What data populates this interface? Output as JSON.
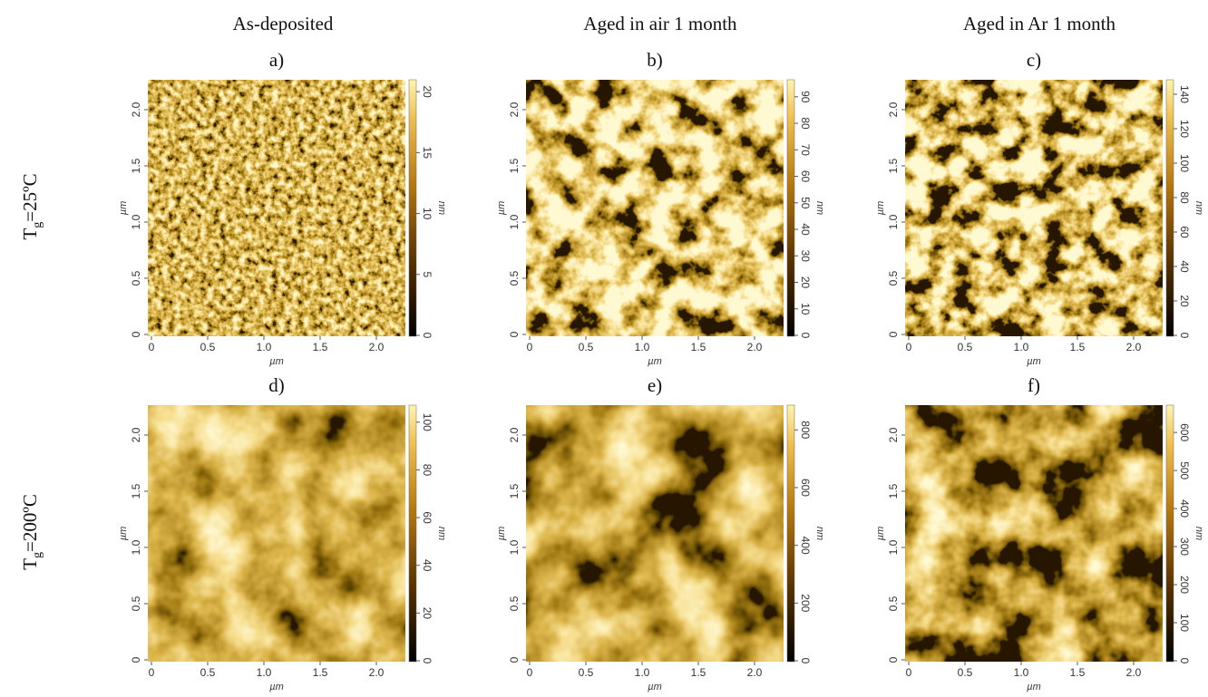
{
  "column_titles": [
    "As-deposited",
    "Aged in air 1 month",
    "Aged in Ar 1 month"
  ],
  "row_labels": [
    {
      "symbol": "T",
      "subscript": "g",
      "rest": "=25ºC"
    },
    {
      "symbol": "T",
      "subscript": "g",
      "rest": "=200ºC"
    }
  ],
  "panels": [
    {
      "label": "a)",
      "x_ticks": [
        "0",
        "0.5",
        "1.0",
        "1.5",
        "2.0"
      ],
      "y_ticks": [
        "0",
        "0.5",
        "1.0",
        "1.5",
        "2.0"
      ],
      "x_axis_label": "µm",
      "y_axis_label": "µm",
      "colorbar_ticks": [
        0,
        5,
        10,
        15,
        20
      ],
      "colorbar_label": "nm"
    },
    {
      "label": "b)",
      "x_ticks": [
        "0",
        "0.5",
        "1.0",
        "1.5",
        "2.0"
      ],
      "y_ticks": [
        "0",
        "0.5",
        "1.0",
        "1.5",
        "2.0"
      ],
      "x_axis_label": "µm",
      "y_axis_label": "µm",
      "colorbar_ticks": [
        0,
        10,
        20,
        30,
        40,
        50,
        60,
        70,
        80,
        90
      ],
      "colorbar_label": "nm"
    },
    {
      "label": "c)",
      "x_ticks": [
        "0",
        "0.5",
        "1.0",
        "1.5",
        "2.0"
      ],
      "y_ticks": [
        "0",
        "0.5",
        "1.0",
        "1.5",
        "2.0"
      ],
      "x_axis_label": "µm",
      "y_axis_label": "µm",
      "colorbar_ticks": [
        0,
        20,
        40,
        60,
        80,
        100,
        120,
        140
      ],
      "colorbar_label": "nm"
    },
    {
      "label": "d)",
      "x_ticks": [
        "0",
        "0.5",
        "1.0",
        "1.5",
        "2.0"
      ],
      "y_ticks": [
        "0",
        "0.5",
        "1.0",
        "1.5",
        "2.0"
      ],
      "x_axis_label": "µm",
      "y_axis_label": "µm",
      "colorbar_ticks": [
        0,
        20,
        40,
        60,
        80,
        100
      ],
      "colorbar_label": "nm"
    },
    {
      "label": "e)",
      "x_ticks": [
        "0",
        "0.5",
        "1.0",
        "1.5",
        "2.0"
      ],
      "y_ticks": [
        "0",
        "0.5",
        "1.0",
        "1.5",
        "2.0"
      ],
      "x_axis_label": "µm",
      "y_axis_label": "µm",
      "colorbar_ticks": [
        0,
        200,
        400,
        600,
        800
      ],
      "colorbar_label": "nm"
    },
    {
      "label": "f)",
      "x_ticks": [
        "0",
        "0.5",
        "1.0",
        "1.5",
        "2.0"
      ],
      "y_ticks": [
        "0",
        "0.5",
        "1.0",
        "1.5",
        "2.0"
      ],
      "x_axis_label": "µm",
      "y_axis_label": "µm",
      "colorbar_ticks": [
        0,
        100,
        200,
        300,
        400,
        500,
        600
      ],
      "colorbar_label": "nm"
    }
  ]
}
